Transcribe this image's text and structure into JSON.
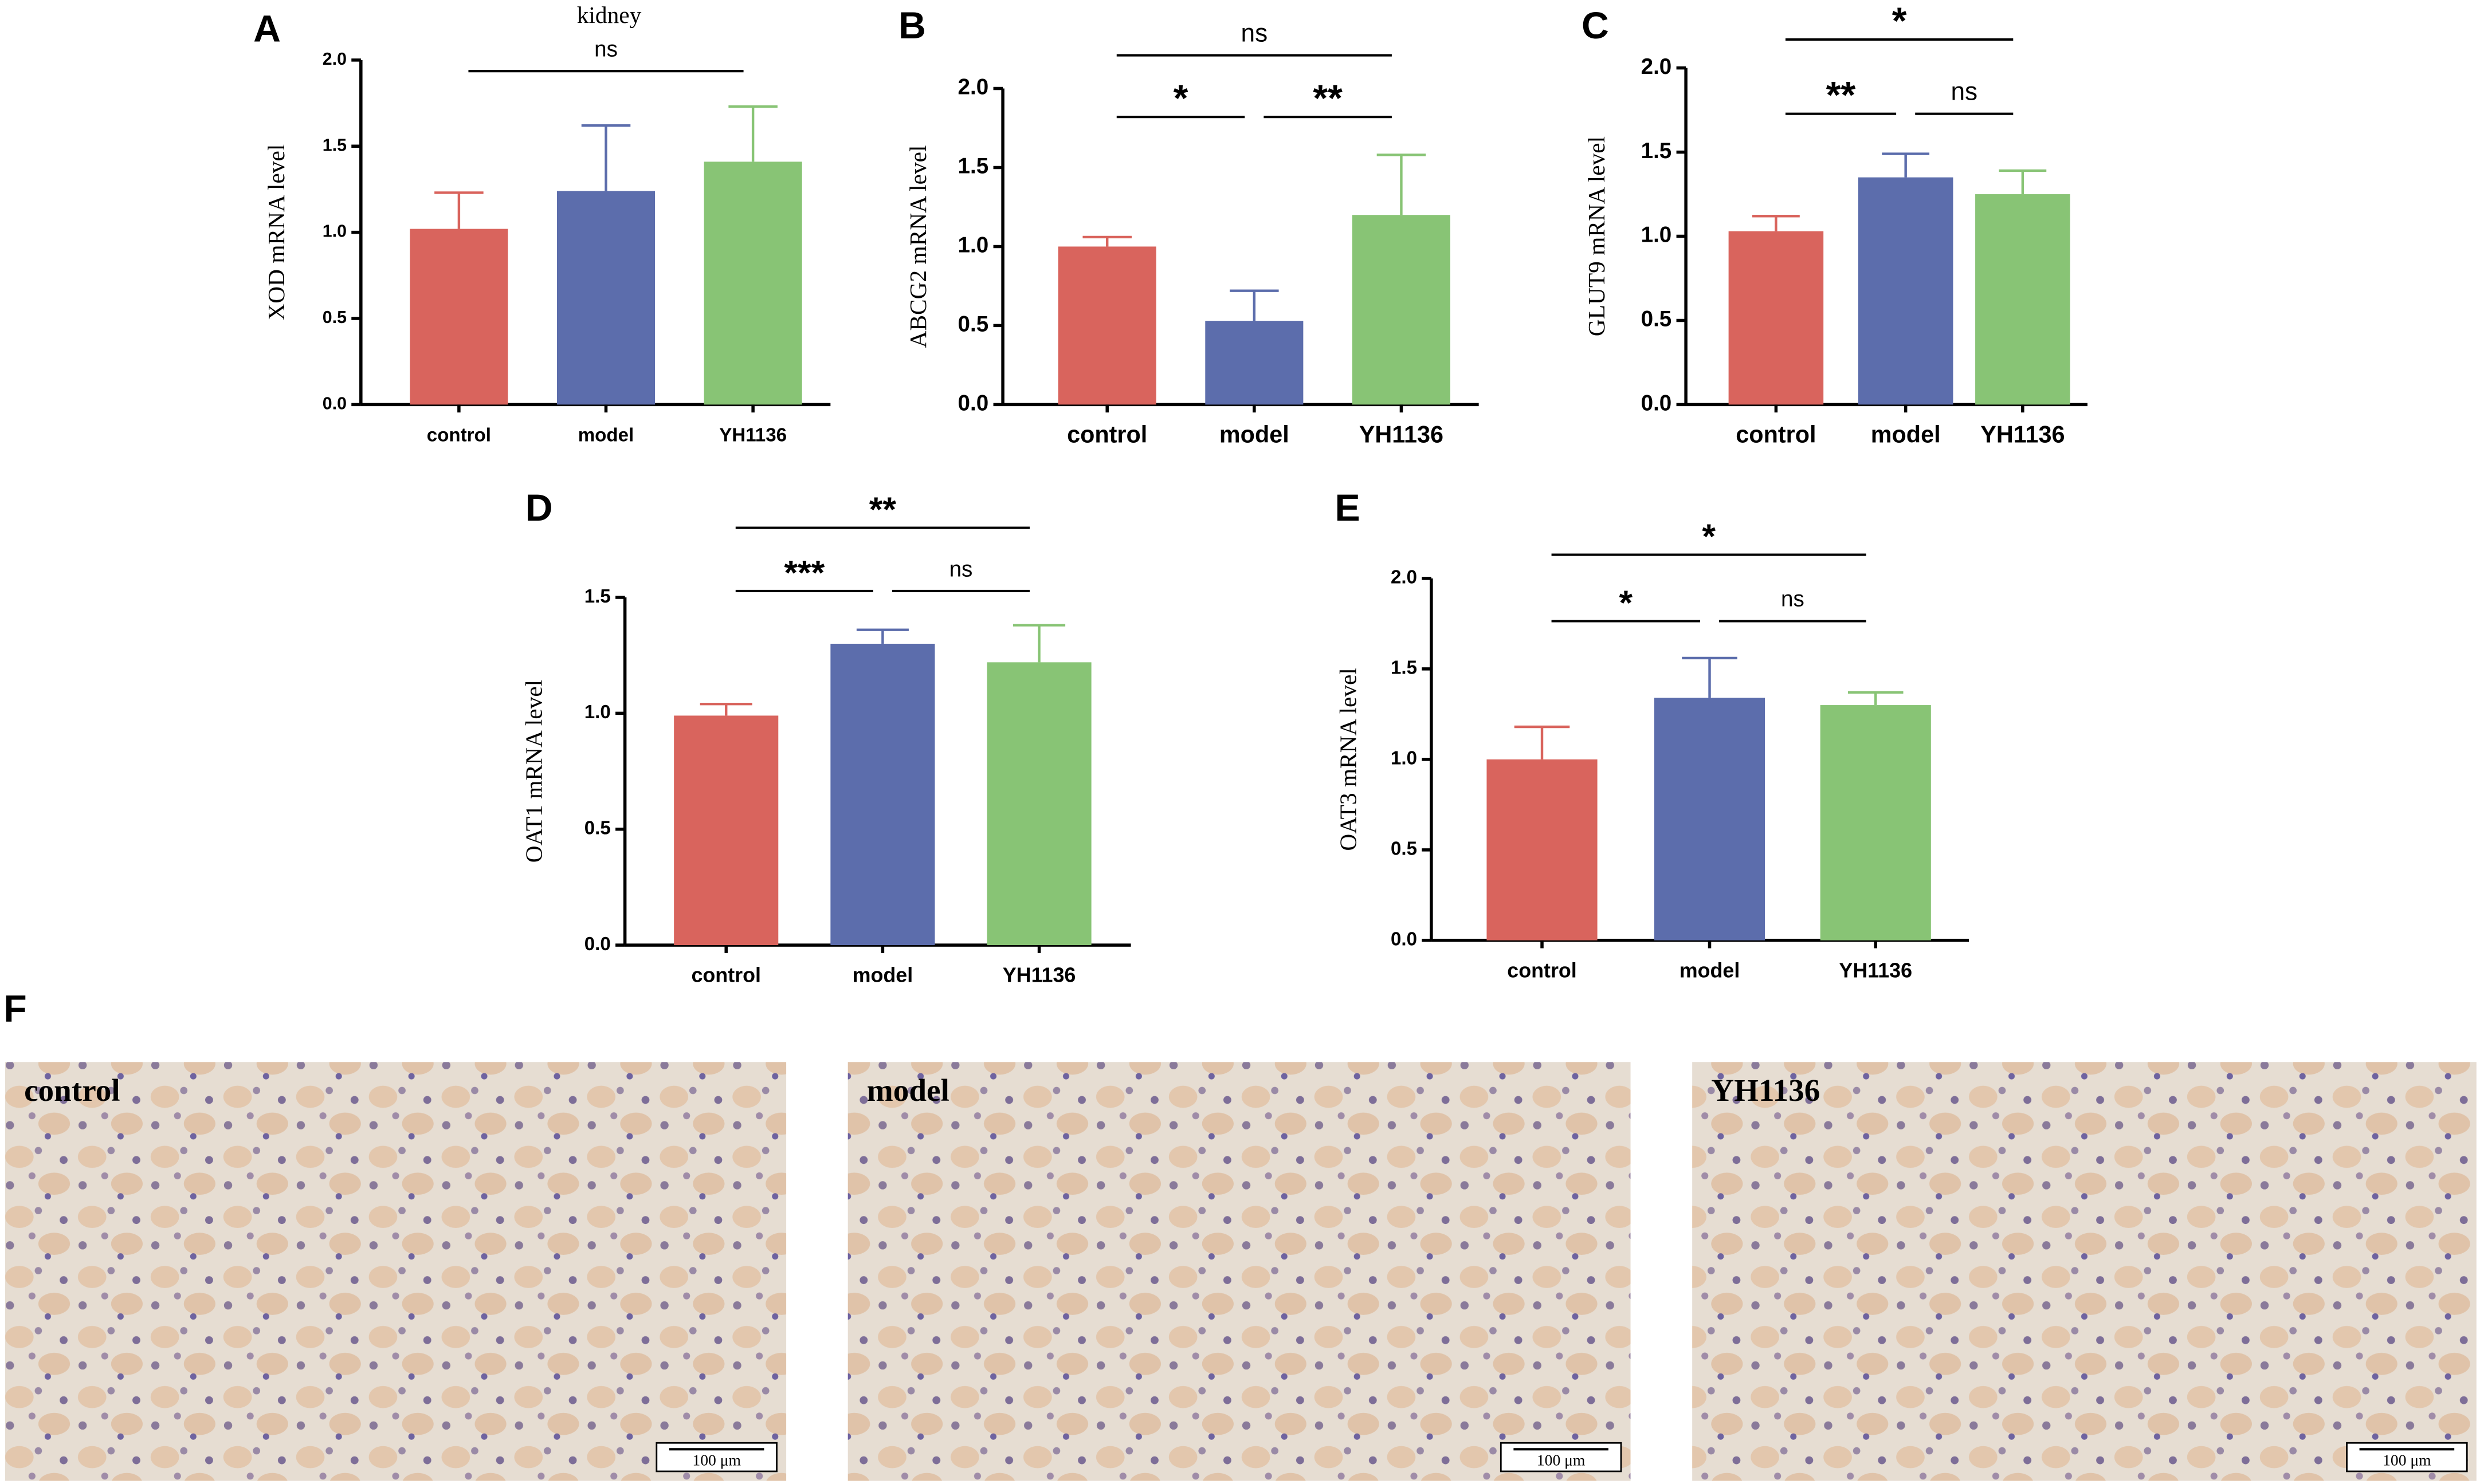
{
  "chart_data": [
    {
      "type": "bar",
      "label": "A",
      "title": "kidney",
      "ylabel": "XOD  mRNA level",
      "categories": [
        "control",
        "model",
        "YH1136"
      ],
      "values": [
        1.02,
        1.24,
        1.41
      ],
      "errors": [
        0.21,
        0.38,
        0.32
      ],
      "colors": [
        "#d9645d",
        "#5c6dac",
        "#88c475"
      ],
      "ylim": [
        0,
        2
      ],
      "yticks": [
        {
          "value": 0,
          "label": "0.0"
        },
        {
          "value": 0.5,
          "label": "0.5"
        },
        {
          "value": 1,
          "label": "1.0"
        },
        {
          "value": 1.5,
          "label": "1.5"
        },
        {
          "value": 2,
          "label": "2.0"
        }
      ],
      "significance": [
        {
          "from": 0,
          "to": 2,
          "label": "ns"
        }
      ]
    },
    {
      "type": "bar",
      "label": "B",
      "ylabel": "ABCG2  mRNA level",
      "categories": [
        "control",
        "model",
        "YH1136"
      ],
      "values": [
        1.0,
        0.53,
        1.2
      ],
      "errors": [
        0.06,
        0.19,
        0.38
      ],
      "colors": [
        "#d9645d",
        "#5c6dac",
        "#88c475"
      ],
      "ylim": [
        0,
        2
      ],
      "yticks": [
        {
          "value": 0,
          "label": "0.0"
        },
        {
          "value": 0.5,
          "label": "0.5"
        },
        {
          "value": 1,
          "label": "1.0"
        },
        {
          "value": 1.5,
          "label": "1.5"
        },
        {
          "value": 2,
          "label": "2.0"
        }
      ],
      "significance": [
        {
          "from": 0,
          "to": 1,
          "label": "*"
        },
        {
          "from": 1,
          "to": 2,
          "label": "**"
        },
        {
          "from": 0,
          "to": 2,
          "label": "ns"
        }
      ]
    },
    {
      "type": "bar",
      "label": "C",
      "ylabel": "GLUT9  mRNA level",
      "categories": [
        "control",
        "model",
        "YH1136"
      ],
      "values": [
        1.03,
        1.35,
        1.25
      ],
      "errors": [
        0.09,
        0.14,
        0.14
      ],
      "colors": [
        "#d9645d",
        "#5c6dac",
        "#88c475"
      ],
      "ylim": [
        0,
        2
      ],
      "yticks": [
        {
          "value": 0,
          "label": "0.0"
        },
        {
          "value": 0.5,
          "label": "0.5"
        },
        {
          "value": 1,
          "label": "1.0"
        },
        {
          "value": 1.5,
          "label": "1.5"
        },
        {
          "value": 2,
          "label": "2.0"
        }
      ],
      "significance": [
        {
          "from": 0,
          "to": 1,
          "label": "**"
        },
        {
          "from": 1,
          "to": 2,
          "label": "ns"
        },
        {
          "from": 0,
          "to": 2,
          "label": "*"
        }
      ]
    },
    {
      "type": "bar",
      "label": "D",
      "ylabel": "OAT1  mRNA level",
      "categories": [
        "control",
        "model",
        "YH1136"
      ],
      "values": [
        0.99,
        1.3,
        1.22
      ],
      "errors": [
        0.05,
        0.06,
        0.16
      ],
      "colors": [
        "#d9645d",
        "#5c6dac",
        "#88c475"
      ],
      "ylim": [
        0,
        1.5
      ],
      "yticks": [
        {
          "value": 0,
          "label": "0.0"
        },
        {
          "value": 0.5,
          "label": "0.5"
        },
        {
          "value": 1,
          "label": "1.0"
        },
        {
          "value": 1.5,
          "label": "1.5"
        }
      ],
      "significance": [
        {
          "from": 0,
          "to": 1,
          "label": "***"
        },
        {
          "from": 1,
          "to": 2,
          "label": "ns"
        },
        {
          "from": 0,
          "to": 2,
          "label": "**"
        }
      ]
    },
    {
      "type": "bar",
      "label": "E",
      "ylabel": "OAT3  mRNA level",
      "categories": [
        "control",
        "model",
        "YH1136"
      ],
      "values": [
        1.0,
        1.34,
        1.3
      ],
      "errors": [
        0.18,
        0.22,
        0.07
      ],
      "colors": [
        "#d9645d",
        "#5c6dac",
        "#88c475"
      ],
      "ylim": [
        0,
        2
      ],
      "yticks": [
        {
          "value": 0,
          "label": "0.0"
        },
        {
          "value": 0.5,
          "label": "0.5"
        },
        {
          "value": 1,
          "label": "1.0"
        },
        {
          "value": 1.5,
          "label": "1.5"
        },
        {
          "value": 2,
          "label": "2.0"
        }
      ],
      "significance": [
        {
          "from": 0,
          "to": 1,
          "label": "*"
        },
        {
          "from": 1,
          "to": 2,
          "label": "ns"
        },
        {
          "from": 0,
          "to": 2,
          "label": "*"
        }
      ]
    }
  ],
  "micrographs": {
    "label": "F",
    "images": [
      {
        "title": "control",
        "scale_bar": "100 μm"
      },
      {
        "title": "model",
        "scale_bar": "100 μm"
      },
      {
        "title": "YH1136",
        "scale_bar": "100 μm"
      }
    ]
  }
}
